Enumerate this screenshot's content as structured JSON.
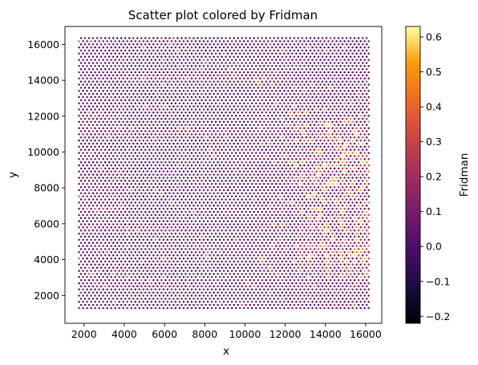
{
  "chart_data": {
    "type": "scatter",
    "title": "Scatter plot colored by Fridman",
    "xlabel": "x",
    "ylabel": "y",
    "xlim": [
      1050,
      16800
    ],
    "ylim": [
      450,
      17000
    ],
    "x_ticks": [
      2000,
      4000,
      6000,
      8000,
      10000,
      12000,
      14000,
      16000
    ],
    "y_ticks": [
      2000,
      4000,
      6000,
      8000,
      10000,
      12000,
      14000,
      16000
    ],
    "grid": false,
    "colorbar": {
      "label": "Fridman",
      "colormap": "inferno",
      "range": [
        -0.22,
        0.63
      ],
      "ticks": [
        -0.2,
        -0.1,
        0.0,
        0.1,
        0.2,
        0.3,
        0.4,
        0.5,
        0.6
      ],
      "tick_labels": [
        "−0.2",
        "−0.1",
        "0.0",
        "0.1",
        "0.2",
        "0.3",
        "0.4",
        "0.5",
        "0.6"
      ]
    },
    "grid_points": {
      "layout": "hexagonal",
      "x_start": 1750,
      "x_end": 16150,
      "x_step": 200,
      "y_start": 1300,
      "y_end": 16400,
      "y_step": 173,
      "row_offset": 100
    },
    "value_distribution": "mostly 0.0–0.1 (purple); higher values 0.2–0.6 concentrated at x 12000–16000, y 3000–12000; scattered high points elsewhere"
  }
}
